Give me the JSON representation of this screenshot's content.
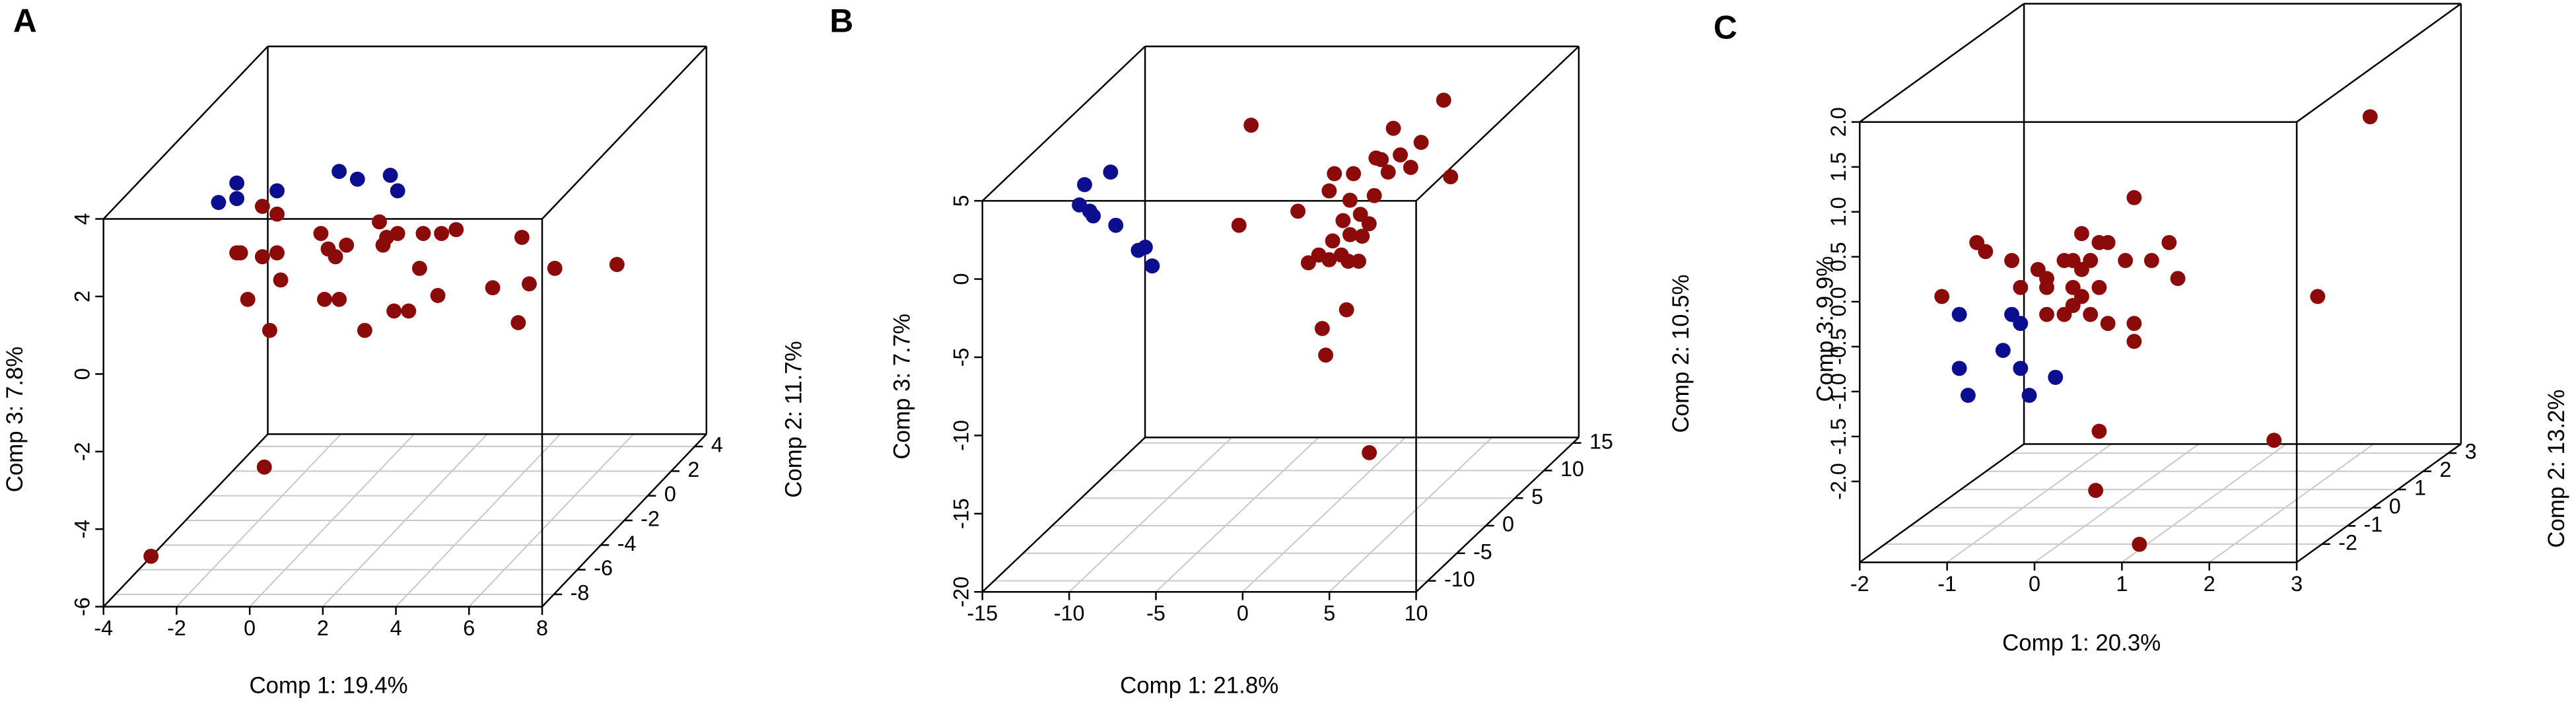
{
  "chart_data": [
    {
      "type": "scatter3d",
      "panel": "A",
      "xlabel": "Comp 1: 19.4%",
      "ylabel": "Comp 2: 11.7%",
      "zlabel": "Comp 3: 7.8%",
      "xlim": [
        -4,
        8
      ],
      "xticks": [
        -4,
        -2,
        0,
        2,
        4,
        6,
        8
      ],
      "ylim": [
        -9,
        5
      ],
      "yticks": [
        -8,
        -6,
        -4,
        -2,
        0,
        2,
        4
      ],
      "zlim": [
        -6,
        4
      ],
      "zticks": [
        -6,
        -4,
        -2,
        0,
        2,
        4
      ],
      "grid": true,
      "series": [
        {
          "color": "#0b0f8f",
          "x": [
            -3.1,
            -2.6,
            -2.6,
            -1.5,
            0.2,
            0.7,
            1.6,
            1.8
          ],
          "y": [
            -2,
            -2,
            -2,
            -2,
            -2,
            -2,
            -2,
            -2
          ],
          "z": [
            2.2,
            2.7,
            2.3,
            2.5,
            3.0,
            2.8,
            2.9,
            2.5
          ]
        },
        {
          "color": "#8b0a0a",
          "x": [
            -1.9,
            -1.5,
            -2.6,
            -2.5,
            -1.9,
            -1.5,
            -0.3,
            -0.1,
            0.1,
            0.4,
            1.3,
            1.5,
            1.4,
            1.8,
            2.5,
            3.0,
            3.4,
            2.4,
            5.2,
            -2.3,
            -1.4,
            -0.2,
            0.2,
            1.7,
            2.1,
            2.9,
            4.4,
            5.4,
            6.1,
            7.8,
            -1.7,
            0.9,
            5.1,
            0.4,
            -2.7
          ],
          "y": [
            -2,
            -2,
            -2,
            -2,
            -2,
            -2,
            -2,
            -2,
            -2,
            -2,
            -2,
            -2,
            -2,
            -2,
            -2,
            -2,
            -2,
            -2,
            -2,
            -2,
            -2,
            -2,
            -2,
            -2,
            -2,
            -2,
            -2,
            -2,
            -2,
            -2,
            -2,
            -2,
            -2,
            -9,
            -9
          ],
          "z": [
            2.1,
            1.9,
            0.9,
            0.9,
            0.8,
            0.9,
            1.4,
            1.0,
            0.8,
            1.1,
            1.7,
            1.3,
            1.1,
            1.4,
            1.4,
            1.4,
            1.5,
            0.5,
            1.3,
            -0.3,
            0.2,
            -0.3,
            -0.3,
            -0.6,
            -0.6,
            -0.2,
            0.0,
            0.1,
            0.5,
            0.6,
            -1.1,
            -1.1,
            -0.9,
            -2.4,
            -4.7
          ]
        }
      ]
    },
    {
      "type": "scatter3d",
      "panel": "B",
      "xlabel": "Comp 1: 21.8%",
      "ylabel": "Comp 2: 10.5%",
      "zlabel": "Comp 3: 7.7%",
      "xlim": [
        -15,
        10
      ],
      "xticks": [
        -15,
        -10,
        -5,
        0,
        5,
        10
      ],
      "ylim": [
        -12,
        16
      ],
      "yticks": [
        -10,
        -5,
        0,
        5,
        10,
        15
      ],
      "zlim": [
        -20,
        5
      ],
      "zticks": [
        -20,
        -15,
        -10,
        -5,
        0,
        5
      ],
      "grid": true,
      "series": [
        {
          "color": "#0b0f8f",
          "x": [
            -13.8,
            -12.3,
            -14.1,
            -13.5,
            -13.3,
            -12.0,
            -10.7,
            -10.3,
            -9.9
          ],
          "y": [
            2,
            2,
            2,
            2,
            2,
            2,
            2,
            2,
            2
          ],
          "z": [
            1.1,
            1.9,
            -0.2,
            -0.6,
            -0.9,
            -1.5,
            -3.1,
            -2.9,
            -4.1
          ]
        },
        {
          "color": "#8b0a0a",
          "x": [
            -4.2,
            6.9,
            4.0,
            5.6,
            3.0,
            0.6,
            1.7,
            3.3,
            3.7,
            5.0,
            7.3,
            4.4,
            0.3,
            1.5,
            2.9,
            -1.5,
            1.1,
            2.1,
            2.6,
            1.5,
            0.5,
            2.2,
            -0.3,
            0.3,
            1.0,
            1.4,
            2.0,
            -0.9,
            -4.9,
            1.3,
            -0.1,
            0.1,
            7.3
          ],
          "y": [
            2,
            2,
            2,
            2,
            2,
            2,
            2,
            2,
            2,
            2,
            2,
            2,
            2,
            2,
            2,
            2,
            2,
            2,
            2,
            2,
            2,
            2,
            2,
            2,
            2,
            2,
            2,
            2,
            2,
            2,
            2,
            2,
            -12
          ],
          "z": [
            4.9,
            6.5,
            4.7,
            3.8,
            2.8,
            1.8,
            1.8,
            2.7,
            1.9,
            2.2,
            1.6,
            3.0,
            0.7,
            0.1,
            0.4,
            -0.6,
            -1.2,
            -0.8,
            -1.4,
            -2.1,
            -2.5,
            -2.2,
            -3.4,
            -3.7,
            -3.4,
            -3.8,
            -3.8,
            -3.9,
            -1.5,
            -6.9,
            -8.1,
            -9.8,
            -11.1
          ]
        }
      ]
    },
    {
      "type": "scatter3d",
      "panel": "C",
      "xlabel": "Comp 1: 20.3%",
      "ylabel": "Comp 2: 13.2%",
      "zlabel": "Comp 3: 9.9%",
      "xlim": [
        -2,
        3
      ],
      "xticks": [
        -2,
        -1,
        0,
        1,
        2,
        3
      ],
      "ylim": [
        -3,
        3.5
      ],
      "yticks": [
        -2,
        -1,
        0,
        1,
        2,
        3
      ],
      "zlim": [
        -2.9,
        2.0
      ],
      "zticks": [
        {
          "value": -2,
          "label": "-2.0"
        },
        {
          "value": -1.5,
          "label": "-1.5"
        },
        {
          "value": -1,
          "label": "-1.0"
        },
        {
          "value": -0.5,
          "label": "-0.5"
        },
        {
          "value": 0,
          "label": "0.0"
        },
        {
          "value": 0.5,
          "label": "0.5"
        },
        {
          "value": 1,
          "label": "1.0"
        },
        {
          "value": 1.5,
          "label": "1.5"
        },
        {
          "value": 2,
          "label": "2.0"
        }
      ],
      "grid": true,
      "series": [
        {
          "color": "#0b0f8f",
          "x": [
            -1.8,
            -1.2,
            -1.1,
            -1.8,
            -1.3,
            -1.1,
            -0.7,
            -1.7,
            -1.0
          ],
          "y": [
            0.25,
            0.25,
            0.25,
            0.25,
            0.25,
            0.25,
            0.25,
            0.25,
            0.25
          ],
          "z": [
            -0.8,
            -0.8,
            -0.9,
            -1.4,
            -1.2,
            -1.4,
            -1.5,
            -1.7,
            -1.7
          ]
        },
        {
          "color": "#8b0a0a",
          "x": [
            2.9,
            0.2,
            -1.6,
            -0.4,
            -0.2,
            -1.2,
            -1.5,
            -0.9,
            -0.6,
            -0.8,
            -0.5,
            -0.4,
            -0.1,
            -0.3,
            0.1,
            0.4,
            0.6,
            0.7,
            -1.1,
            -2.0,
            -0.8,
            -0.5,
            -0.4,
            -0.2,
            -0.5,
            -0.3,
            -0.1,
            0.2,
            -0.6,
            -0.8,
            0.2,
            2.3,
            -0.2,
            1.8,
            0.7,
            1.2
          ],
          "y": [
            0.25,
            0.25,
            0.25,
            0.25,
            0.25,
            0.25,
            0.25,
            0.25,
            0.25,
            0.25,
            0.25,
            0.25,
            0.25,
            0.25,
            0.25,
            0.25,
            0.25,
            0.25,
            0.25,
            0.25,
            0.25,
            0.25,
            0.25,
            0.25,
            0.25,
            0.25,
            0.25,
            0.25,
            0.25,
            0.25,
            0.25,
            0.25,
            0.25,
            0.25,
            -3,
            -3
          ],
          "z": [
            1.4,
            0.5,
            0.0,
            0.1,
            0.0,
            -0.2,
            -0.1,
            -0.3,
            -0.2,
            -0.4,
            -0.2,
            -0.3,
            0.0,
            -0.2,
            -0.2,
            -0.2,
            0.0,
            -0.4,
            -0.5,
            -0.6,
            -0.5,
            -0.5,
            -0.6,
            -0.5,
            -0.7,
            -0.8,
            -0.9,
            -0.9,
            -0.8,
            -0.8,
            -1.1,
            -0.6,
            -2.1,
            -2.2,
            -2.1,
            -2.7
          ]
        }
      ]
    }
  ]
}
